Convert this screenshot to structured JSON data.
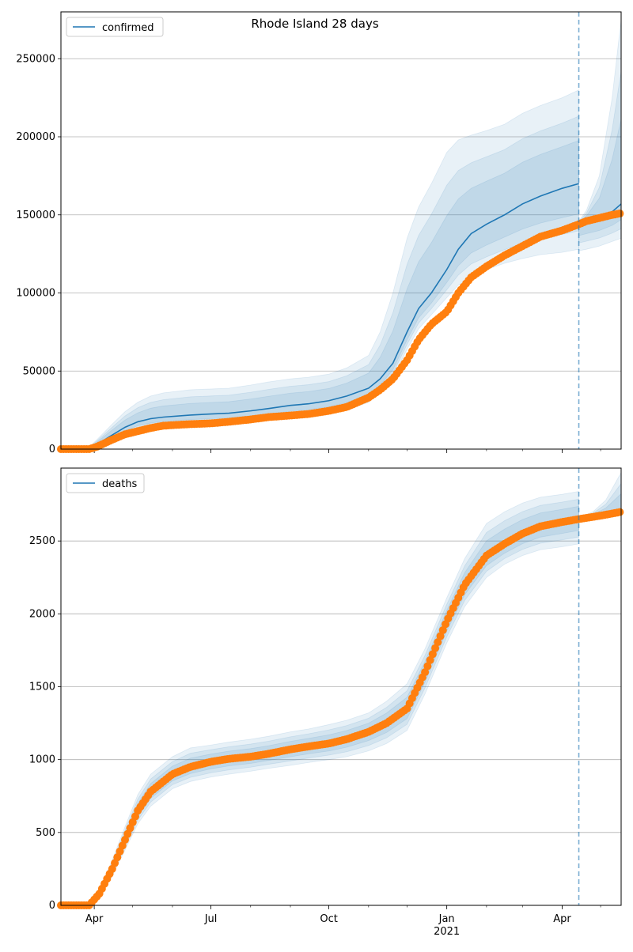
{
  "figure": {
    "title": "Rhode Island 28 days"
  },
  "colors": {
    "band": "#1f77b4",
    "median": "#1f77b4",
    "observed": "#ff7f0e",
    "grid": "#b0b0b0",
    "forecast_line": "#1f77b4"
  },
  "chart_data": [
    {
      "type": "line",
      "legend": [
        "confirmed"
      ],
      "legend_position": "top-left",
      "x_axis": {
        "type": "date",
        "range": [
          "2020-03-06",
          "2021-05-17"
        ],
        "tick_labels": [
          "Apr",
          "Jul",
          "Oct",
          "Jan",
          "Apr"
        ],
        "tick_dates": [
          "2020-04-01",
          "2020-07-01",
          "2020-10-01",
          "2021-01-01",
          "2021-04-01"
        ],
        "year_label": "2021"
      },
      "y_axis": {
        "range": [
          0,
          280000
        ],
        "ticks": [
          0,
          50000,
          100000,
          150000,
          200000,
          250000
        ],
        "tick_labels": [
          "0",
          "50000",
          "100000",
          "150000",
          "200000",
          "250000"
        ],
        "grid": true
      },
      "forecast_start": "2021-04-14",
      "series": [
        {
          "name": "confirmed",
          "x": [
            "2020-03-06",
            "2020-03-20",
            "2020-03-28",
            "2020-04-03",
            "2020-04-15",
            "2020-04-25",
            "2020-05-05",
            "2020-05-15",
            "2020-05-25",
            "2020-06-15",
            "2020-07-01",
            "2020-07-15",
            "2020-08-01",
            "2020-08-15",
            "2020-09-01",
            "2020-09-15",
            "2020-10-01",
            "2020-10-15",
            "2020-11-01",
            "2020-11-10",
            "2020-11-20",
            "2020-12-01",
            "2020-12-10",
            "2020-12-20",
            "2021-01-01",
            "2021-01-10",
            "2021-01-20",
            "2021-02-01",
            "2021-02-15",
            "2021-03-01",
            "2021-03-15",
            "2021-04-01",
            "2021-04-14"
          ],
          "values": [
            0,
            0,
            500,
            3000,
            9000,
            14000,
            17500,
            19500,
            20500,
            21800,
            22500,
            23000,
            24500,
            26000,
            28000,
            29000,
            31000,
            34000,
            39000,
            45000,
            55000,
            75000,
            90000,
            100000,
            115000,
            128000,
            138000,
            144000,
            150000,
            157000,
            162000,
            167000,
            170000
          ],
          "band_outer_low": [
            0,
            0,
            0,
            800,
            5000,
            9000,
            12000,
            13500,
            14500,
            15500,
            16000,
            16500,
            17500,
            18500,
            20000,
            21000,
            22500,
            25000,
            30000,
            36000,
            46000,
            64000,
            77000,
            86000,
            97000,
            105000,
            111000,
            115000,
            119000,
            122000,
            124500,
            126000,
            128000
          ],
          "band_outer_high": [
            0,
            0,
            1200,
            6000,
            16000,
            24000,
            30000,
            34000,
            36000,
            38000,
            38500,
            39000,
            41000,
            43000,
            45000,
            46000,
            48000,
            52000,
            60000,
            75000,
            100000,
            135000,
            155000,
            170000,
            190000,
            198000,
            201000,
            204000,
            208000,
            215000,
            220000,
            225000,
            230000
          ]
        },
        {
          "name": "forecast",
          "x": [
            "2021-04-14",
            "2021-04-20",
            "2021-04-30",
            "2021-05-10",
            "2021-05-17"
          ],
          "values": [
            145000,
            146500,
            148500,
            152000,
            157000
          ],
          "band_outer_low": [
            127000,
            128000,
            130000,
            133000,
            135000
          ],
          "band_outer_high": [
            146000,
            153000,
            175000,
            225000,
            275000
          ]
        },
        {
          "name": "observed",
          "x": [
            "2020-03-06",
            "2020-03-28",
            "2020-04-03",
            "2020-04-15",
            "2020-04-25",
            "2020-05-05",
            "2020-05-15",
            "2020-05-25",
            "2020-06-15",
            "2020-07-01",
            "2020-07-15",
            "2020-08-01",
            "2020-08-15",
            "2020-09-01",
            "2020-09-15",
            "2020-10-01",
            "2020-10-15",
            "2020-11-01",
            "2020-11-10",
            "2020-11-20",
            "2020-12-01",
            "2020-12-10",
            "2020-12-20",
            "2021-01-01",
            "2021-01-10",
            "2021-01-20",
            "2021-02-01",
            "2021-02-15",
            "2021-03-01",
            "2021-03-15",
            "2021-04-01",
            "2021-04-14",
            "2021-04-20",
            "2021-04-30",
            "2021-05-10",
            "2021-05-17"
          ],
          "values": [
            0,
            0,
            1500,
            6000,
            9500,
            11500,
            13500,
            15000,
            16000,
            16500,
            17500,
            19000,
            20500,
            21500,
            22500,
            24500,
            27000,
            33000,
            38000,
            45000,
            57000,
            70000,
            80000,
            88000,
            100000,
            110000,
            117000,
            124000,
            130000,
            136000,
            140000,
            144000,
            146000,
            148000,
            150000,
            151000
          ]
        }
      ]
    },
    {
      "type": "line",
      "legend": [
        "deaths"
      ],
      "legend_position": "top-left",
      "x_axis": {
        "type": "date",
        "range": [
          "2020-03-06",
          "2021-05-17"
        ],
        "tick_labels": [
          "Apr",
          "Jul",
          "Oct",
          "Jan",
          "Apr"
        ],
        "tick_dates": [
          "2020-04-01",
          "2020-07-01",
          "2020-10-01",
          "2021-01-01",
          "2021-04-01"
        ],
        "year_label": "2021"
      },
      "y_axis": {
        "range": [
          0,
          3000
        ],
        "ticks": [
          0,
          500,
          1000,
          1500,
          2000,
          2500
        ],
        "tick_labels": [
          "0",
          "500",
          "1000",
          "1500",
          "2000",
          "2500"
        ],
        "grid": true
      },
      "forecast_start": "2021-04-14",
      "series": [
        {
          "name": "deaths",
          "x": [
            "2020-03-06",
            "2020-03-28",
            "2020-04-05",
            "2020-04-15",
            "2020-04-25",
            "2020-05-05",
            "2020-05-15",
            "2020-06-01",
            "2020-06-15",
            "2020-07-01",
            "2020-07-15",
            "2020-08-01",
            "2020-08-15",
            "2020-09-01",
            "2020-09-15",
            "2020-10-01",
            "2020-10-15",
            "2020-11-01",
            "2020-11-15",
            "2020-12-01",
            "2020-12-15",
            "2021-01-01",
            "2021-01-15",
            "2021-02-01",
            "2021-02-15",
            "2021-03-01",
            "2021-03-15",
            "2021-04-01",
            "2021-04-14"
          ],
          "values": [
            0,
            0,
            80,
            250,
            450,
            650,
            780,
            900,
            950,
            985,
            1005,
            1020,
            1040,
            1070,
            1090,
            1110,
            1140,
            1190,
            1250,
            1350,
            1600,
            1950,
            2200,
            2400,
            2480,
            2550,
            2600,
            2630,
            2650
          ],
          "band_outer_low": [
            0,
            0,
            60,
            200,
            380,
            560,
            680,
            800,
            850,
            880,
            900,
            920,
            940,
            960,
            980,
            1000,
            1020,
            1060,
            1110,
            1200,
            1450,
            1800,
            2050,
            2250,
            2340,
            2400,
            2440,
            2460,
            2480
          ],
          "band_outer_high": [
            0,
            0,
            110,
            310,
            540,
            760,
            900,
            1020,
            1080,
            1100,
            1120,
            1140,
            1160,
            1190,
            1210,
            1240,
            1270,
            1320,
            1400,
            1520,
            1760,
            2110,
            2380,
            2620,
            2700,
            2760,
            2800,
            2820,
            2840
          ]
        },
        {
          "name": "forecast",
          "x": [
            "2021-04-14",
            "2021-04-25",
            "2021-05-05",
            "2021-05-17"
          ],
          "values": [
            2650,
            2665,
            2680,
            2700
          ],
          "band_outer_low": [
            2640,
            2655,
            2665,
            2680
          ],
          "band_outer_high": [
            2660,
            2700,
            2780,
            2970
          ]
        },
        {
          "name": "observed",
          "x": [
            "2020-03-06",
            "2020-03-28",
            "2020-04-05",
            "2020-04-15",
            "2020-04-25",
            "2020-05-05",
            "2020-05-15",
            "2020-06-01",
            "2020-06-15",
            "2020-07-01",
            "2020-07-15",
            "2020-08-01",
            "2020-08-15",
            "2020-09-01",
            "2020-09-15",
            "2020-10-01",
            "2020-10-15",
            "2020-11-01",
            "2020-11-15",
            "2020-12-01",
            "2020-12-15",
            "2021-01-01",
            "2021-01-15",
            "2021-02-01",
            "2021-02-15",
            "2021-03-01",
            "2021-03-15",
            "2021-04-01",
            "2021-04-14",
            "2021-04-25",
            "2021-05-05",
            "2021-05-17"
          ],
          "values": [
            0,
            0,
            80,
            250,
            450,
            650,
            780,
            900,
            950,
            985,
            1005,
            1020,
            1040,
            1070,
            1090,
            1110,
            1140,
            1190,
            1250,
            1350,
            1600,
            1950,
            2200,
            2400,
            2480,
            2550,
            2600,
            2630,
            2650,
            2665,
            2680,
            2700
          ]
        }
      ]
    }
  ]
}
